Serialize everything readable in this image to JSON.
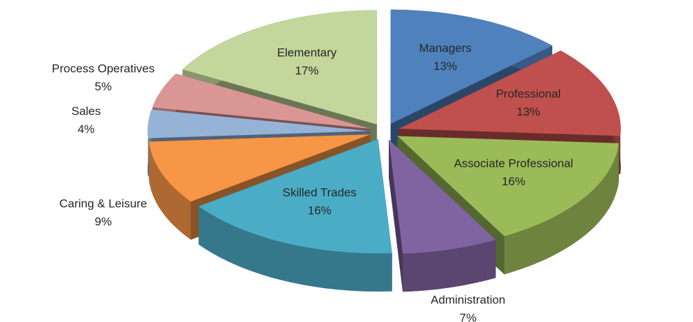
{
  "chart_data": {
    "type": "pie",
    "categories": [
      "Managers",
      "Professional",
      "Associate Professional",
      "Administration",
      "Skilled Trades",
      "Caring & Leisure",
      "Sales",
      "Process Operatives",
      "Elementary"
    ],
    "values": [
      13,
      13,
      16,
      7,
      16,
      9,
      4,
      5,
      17
    ],
    "value_labels": [
      "13%",
      "13%",
      "16%",
      "7%",
      "16%",
      "9%",
      "4%",
      "5%",
      "17%"
    ],
    "colors": [
      "#4f81bd",
      "#c0504d",
      "#9bbb59",
      "#8064a2",
      "#4bacc6",
      "#f79646",
      "#95b3d7",
      "#d99694",
      "#c3d69b"
    ]
  }
}
